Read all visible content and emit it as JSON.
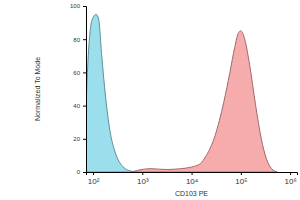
{
  "chart_data": {
    "type": "area",
    "x_label": "CD103 PE",
    "y_label": "Normalized To Mode",
    "log": "x",
    "xlim": [
      72,
      1380000
    ],
    "xticks": [
      {
        "value": 100,
        "label": "10²"
      },
      {
        "value": 1000,
        "label": "10³"
      },
      {
        "value": 10000,
        "label": "10⁴"
      },
      {
        "value": 100000,
        "label": "10⁵"
      },
      {
        "value": 1000000,
        "label": "10⁶"
      }
    ],
    "ylim": [
      0,
      100
    ],
    "yticks": [
      0,
      20,
      40,
      60,
      80,
      100
    ],
    "series": [
      {
        "color": "#8fdce9",
        "x": [
          72,
          80,
          90,
          100,
          115,
          130,
          150,
          180,
          220,
          280,
          360,
          450,
          600,
          750
        ],
        "values": [
          40,
          70,
          88,
          93,
          95,
          92,
          70,
          45,
          25,
          12,
          5,
          2,
          0.5,
          0
        ]
      },
      {
        "color": "#f5a3a3",
        "x": [
          600,
          800,
          1500,
          3000,
          6000,
          10000,
          15000,
          20000,
          30000,
          45000,
          60000,
          75000,
          90000,
          100000,
          120000,
          150000,
          200000,
          260000,
          330000,
          420000,
          550000
        ],
        "values": [
          0,
          1,
          2,
          1.5,
          2,
          3,
          5,
          10,
          22,
          42,
          60,
          75,
          84,
          85,
          80,
          65,
          40,
          20,
          8,
          2,
          0
        ]
      }
    ]
  }
}
